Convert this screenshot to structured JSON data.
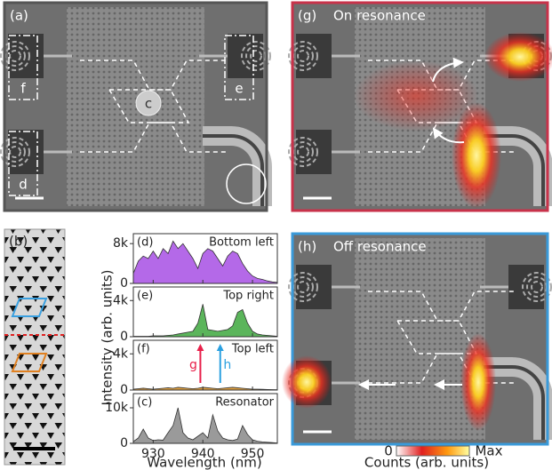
{
  "panels": {
    "a": "(a)",
    "b": "(b)",
    "g": "(g)",
    "h": "(h)"
  },
  "device_labels": {
    "c": "c",
    "d": "d",
    "e": "e",
    "f": "f"
  },
  "titles": {
    "g": "On resonance",
    "h": "Off resonance"
  },
  "colorbar": {
    "min": "0",
    "max": "Max",
    "label": "Counts (arb. units)"
  },
  "spectra_axes": {
    "xlabel": "Wavelength (nm)",
    "ylabel": "Intensity (arb. units)"
  },
  "chart_data": [
    {
      "type": "area",
      "panel": "(d)",
      "title": "Bottom left",
      "color": "#b469e8",
      "x": [
        926,
        927,
        928,
        929,
        930,
        931,
        932,
        933,
        934,
        935,
        936,
        937,
        938,
        939,
        940,
        941,
        942,
        943,
        944,
        945,
        946,
        947,
        948,
        949,
        950,
        951,
        952,
        953,
        954,
        955
      ],
      "values": [
        2000,
        4500,
        5500,
        5000,
        6500,
        5000,
        7000,
        6000,
        8500,
        7000,
        8000,
        6500,
        5000,
        3000,
        6000,
        7000,
        6500,
        5000,
        3500,
        5500,
        6500,
        6000,
        4000,
        2500,
        1500,
        1000,
        800,
        500,
        300,
        200
      ],
      "xlim": [
        926,
        955
      ],
      "xticks": [
        930,
        940,
        950
      ],
      "ylim": [
        0,
        10000
      ],
      "yticks": [
        0,
        {
          "value": 8000,
          "label": "8k"
        }
      ]
    },
    {
      "type": "area",
      "panel": "(e)",
      "title": "Top right",
      "color": "#5bb55b",
      "x": [
        926,
        927,
        928,
        929,
        930,
        931,
        932,
        933,
        934,
        935,
        936,
        937,
        938,
        939,
        940,
        941,
        942,
        943,
        944,
        945,
        946,
        947,
        948,
        949,
        950,
        951,
        952,
        953,
        954,
        955
      ],
      "values": [
        50,
        50,
        50,
        50,
        100,
        100,
        100,
        150,
        200,
        300,
        400,
        500,
        600,
        1500,
        3600,
        800,
        700,
        600,
        700,
        800,
        1200,
        2700,
        3000,
        1500,
        600,
        300,
        200,
        150,
        100,
        50
      ],
      "xlim": [
        926,
        955
      ],
      "xticks": [
        930,
        940,
        950
      ],
      "ylim": [
        0,
        5500
      ],
      "yticks": [
        0,
        {
          "value": 4000,
          "label": "4k"
        }
      ]
    },
    {
      "type": "area",
      "panel": "(f)",
      "title": "Top left",
      "color": "#e0a040",
      "x": [
        926,
        927,
        928,
        929,
        930,
        931,
        932,
        933,
        934,
        935,
        936,
        937,
        938,
        939,
        940,
        941,
        942,
        943,
        944,
        945,
        946,
        947,
        948,
        949,
        950,
        951,
        952,
        953,
        954,
        955
      ],
      "values": [
        100,
        150,
        200,
        150,
        100,
        150,
        200,
        250,
        200,
        300,
        250,
        200,
        150,
        200,
        300,
        250,
        200,
        150,
        200,
        250,
        300,
        250,
        200,
        150,
        100,
        100,
        80,
        60,
        50,
        40
      ],
      "xlim": [
        926,
        955
      ],
      "xticks": [
        930,
        940,
        950
      ],
      "ylim": [
        0,
        5500
      ],
      "yticks": [
        0,
        {
          "value": 4000,
          "label": "4k"
        }
      ],
      "annotations": [
        {
          "text": "g",
          "x": 939.5,
          "color": "#e8204a"
        },
        {
          "text": "h",
          "x": 943.5,
          "color": "#2aa0e0"
        }
      ]
    },
    {
      "type": "area",
      "panel": "(c)",
      "title": "Resonator",
      "color": "#9a9a9a",
      "x": [
        926,
        927,
        928,
        929,
        930,
        931,
        932,
        933,
        934,
        935,
        936,
        937,
        938,
        939,
        940,
        941,
        942,
        943,
        944,
        945,
        946,
        947,
        948,
        949,
        950,
        951,
        952,
        953,
        954,
        955
      ],
      "values": [
        500,
        1500,
        4000,
        1500,
        800,
        1000,
        900,
        3000,
        5000,
        10000,
        3000,
        1500,
        1000,
        2000,
        3000,
        1500,
        8000,
        3500,
        1500,
        1000,
        800,
        1200,
        5000,
        2500,
        1000,
        600,
        400,
        300,
        200,
        100
      ],
      "xlim": [
        926,
        955
      ],
      "xticks": [
        930,
        940,
        950
      ],
      "ylim": [
        0,
        14000
      ],
      "yticks": [
        0,
        {
          "value": 10000,
          "label": "10k"
        }
      ]
    }
  ]
}
